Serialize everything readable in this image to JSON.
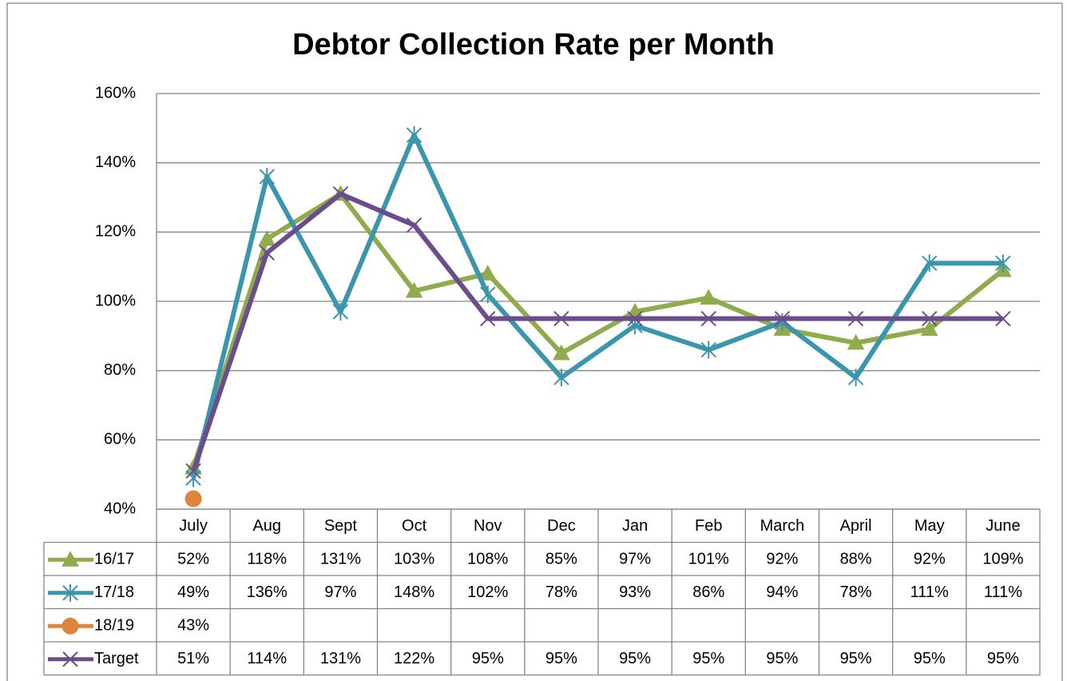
{
  "chart_data": {
    "type": "line",
    "title": "Debtor Collection Rate per Month",
    "categories": [
      "July",
      "Aug",
      "Sept",
      "Oct",
      "Nov",
      "Dec",
      "Jan",
      "Feb",
      "March",
      "April",
      "May",
      "June"
    ],
    "series": [
      {
        "name": "16/17",
        "color": "#8fab4b",
        "marker": "triangle",
        "values": [
          52,
          118,
          131,
          103,
          108,
          85,
          97,
          101,
          92,
          88,
          92,
          109
        ],
        "value_labels": [
          "52%",
          "118%",
          "131%",
          "103%",
          "108%",
          "85%",
          "97%",
          "101%",
          "92%",
          "88%",
          "92%",
          "109%"
        ]
      },
      {
        "name": "17/18",
        "color": "#3b95ad",
        "marker": "star",
        "values": [
          49,
          136,
          97,
          148,
          102,
          78,
          93,
          86,
          94,
          78,
          111,
          111
        ],
        "value_labels": [
          "49%",
          "136%",
          "97%",
          "148%",
          "102%",
          "78%",
          "93%",
          "86%",
          "94%",
          "78%",
          "111%",
          "111%"
        ]
      },
      {
        "name": "18/19",
        "color": "#e0843c",
        "marker": "circle",
        "values": [
          43,
          null,
          null,
          null,
          null,
          null,
          null,
          null,
          null,
          null,
          null,
          null
        ],
        "value_labels": [
          "43%",
          null,
          null,
          null,
          null,
          null,
          null,
          null,
          null,
          null,
          null,
          null
        ]
      },
      {
        "name": "Target",
        "color": "#6b4d8c",
        "marker": "x",
        "values": [
          51,
          114,
          131,
          122,
          95,
          95,
          95,
          95,
          95,
          95,
          95,
          95
        ],
        "value_labels": [
          "51%",
          "114%",
          "131%",
          "122%",
          "95%",
          "95%",
          "95%",
          "95%",
          "95%",
          "95%",
          "95%",
          "95%"
        ]
      }
    ],
    "ylim": [
      40,
      160
    ],
    "yticks": [
      {
        "value": 40,
        "label": "40%"
      },
      {
        "value": 60,
        "label": "60%"
      },
      {
        "value": 80,
        "label": "80%"
      },
      {
        "value": 100,
        "label": "100%"
      },
      {
        "value": 120,
        "label": "120%"
      },
      {
        "value": 140,
        "label": "140%"
      },
      {
        "value": 160,
        "label": "160%"
      }
    ],
    "grid": true
  }
}
